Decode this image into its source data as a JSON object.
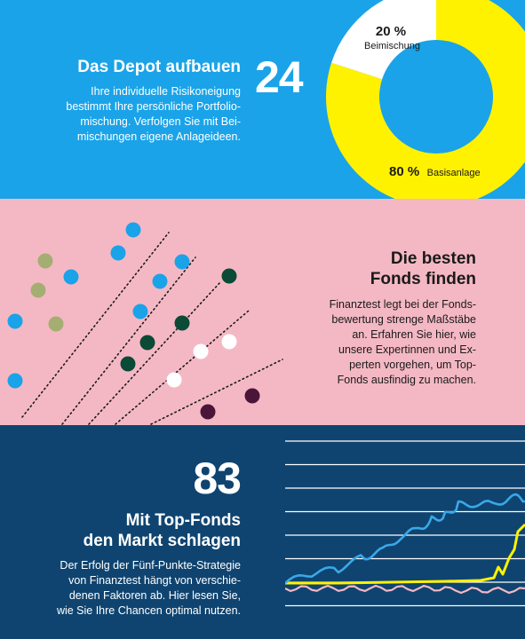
{
  "depot": {
    "number": "24",
    "title": "Das Depot aufbauen",
    "text": [
      "Ihre individuelle Risikoneigung",
      "bestimmt Ihre persönliche Portfolio-",
      "mischung. Verfolgen Sie mit Bei-",
      "mischungen eigene Anlageideen."
    ],
    "donut": {
      "segments": [
        {
          "pct_value": 20,
          "pct": "20 %",
          "label": "Beimischung",
          "color": "#ffffff"
        },
        {
          "pct_value": 80,
          "pct": "80 %",
          "label": "Basisanlage",
          "color": "#fff200"
        }
      ]
    }
  },
  "fonds": {
    "title": [
      "Die besten",
      "Fonds finden"
    ],
    "text": [
      "Finanztest legt bei der Fonds-",
      "bewertung strenge Maßstäbe",
      "an. Erfahren Sie hier, wie",
      "unsere Expertinnen und Ex-",
      "perten vorgehen, um Top-",
      "Fonds ausfindig zu machen."
    ],
    "colors": {
      "blue": "#1aa3e8",
      "olive": "#a5ae72",
      "green": "#0b4a36",
      "white": "#ffffff",
      "purple": "#4a1538"
    }
  },
  "markt": {
    "number": "83",
    "title": [
      "Mit Top-Fonds",
      "den Markt schlagen"
    ],
    "text": [
      "Der Erfolg der Fünf-Punkte-Strategie",
      "von Finanztest hängt von verschie-",
      "denen Faktoren ab. Hier lesen Sie,",
      "wie Sie Ihre Chancen optimal nutzen."
    ],
    "colors": {
      "blue": "#3aa8e8",
      "yellow": "#fff200",
      "pink": "#f4b8c4"
    }
  }
}
